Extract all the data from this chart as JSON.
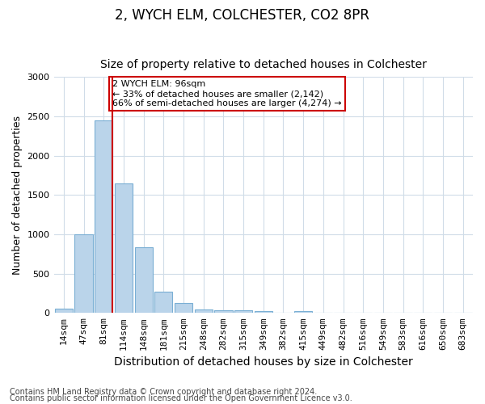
{
  "title": "2, WYCH ELM, COLCHESTER, CO2 8PR",
  "subtitle": "Size of property relative to detached houses in Colchester",
  "xlabel": "Distribution of detached houses by size in Colchester",
  "ylabel": "Number of detached properties",
  "bar_values": [
    50,
    1000,
    2450,
    1650,
    830,
    275,
    130,
    45,
    30,
    30,
    25,
    0,
    25,
    0,
    0,
    0,
    0,
    0,
    0,
    0,
    0
  ],
  "categories": [
    "14sqm",
    "47sqm",
    "81sqm",
    "114sqm",
    "148sqm",
    "181sqm",
    "215sqm",
    "248sqm",
    "282sqm",
    "315sqm",
    "349sqm",
    "382sqm",
    "415sqm",
    "449sqm",
    "482sqm",
    "516sqm",
    "549sqm",
    "583sqm",
    "616sqm",
    "650sqm",
    "683sqm"
  ],
  "bar_color": "#bad4ea",
  "bar_edge_color": "#7aafd4",
  "red_line_index": 2,
  "red_line_color": "#cc0000",
  "annotation_text": "2 WYCH ELM: 96sqm\n← 33% of detached houses are smaller (2,142)\n66% of semi-detached houses are larger (4,274) →",
  "annotation_box_color": "#ffffff",
  "annotation_box_edge": "#cc0000",
  "ylim": [
    0,
    3000
  ],
  "yticks": [
    0,
    500,
    1000,
    1500,
    2000,
    2500,
    3000
  ],
  "footer1": "Contains HM Land Registry data © Crown copyright and database right 2024.",
  "footer2": "Contains public sector information licensed under the Open Government Licence v3.0.",
  "bg_color": "#ffffff",
  "plot_bg_color": "#ffffff",
  "grid_color": "#d0dce8",
  "title_fontsize": 12,
  "subtitle_fontsize": 10,
  "xlabel_fontsize": 10,
  "ylabel_fontsize": 9,
  "tick_fontsize": 8,
  "footer_fontsize": 7
}
